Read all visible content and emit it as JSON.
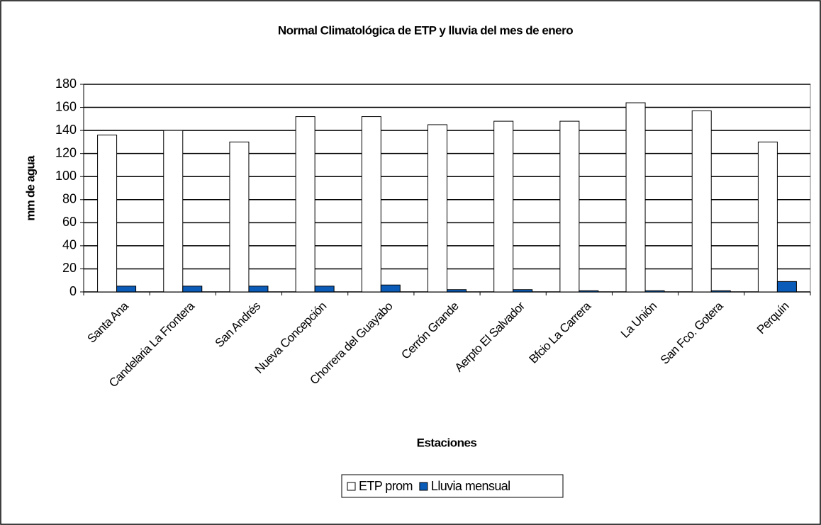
{
  "chart_data": {
    "type": "bar",
    "title": "Normal Climatológica de ETP y lluvia del mes de enero",
    "x_label": "Estaciones",
    "y_label": "mm de agua",
    "categories": [
      "Santa Ana",
      "Candelaria  La Frontera",
      "San Andrés",
      "Nueva Concepción",
      "Chorrera del Guayabo",
      "Cerrón Grande",
      "Aerpto El Salvador",
      "Bfcio La Carrera",
      "La Unión",
      "San Fco. Gotera",
      "Perquín"
    ],
    "series": [
      {
        "name": "ETP prom",
        "color": "#ffffff",
        "values": [
          136,
          140,
          130,
          152,
          152,
          145,
          148,
          148,
          164,
          157,
          130
        ]
      },
      {
        "name": "Lluvia mensual",
        "color": "#0a5cb8",
        "values": [
          5,
          5,
          5,
          5,
          6,
          2,
          2,
          1,
          1,
          1,
          9
        ]
      }
    ],
    "ylim": [
      0,
      180
    ],
    "yticks": [
      0,
      20,
      40,
      60,
      80,
      100,
      120,
      140,
      160,
      180
    ],
    "grid": true,
    "legend": "bottom"
  }
}
